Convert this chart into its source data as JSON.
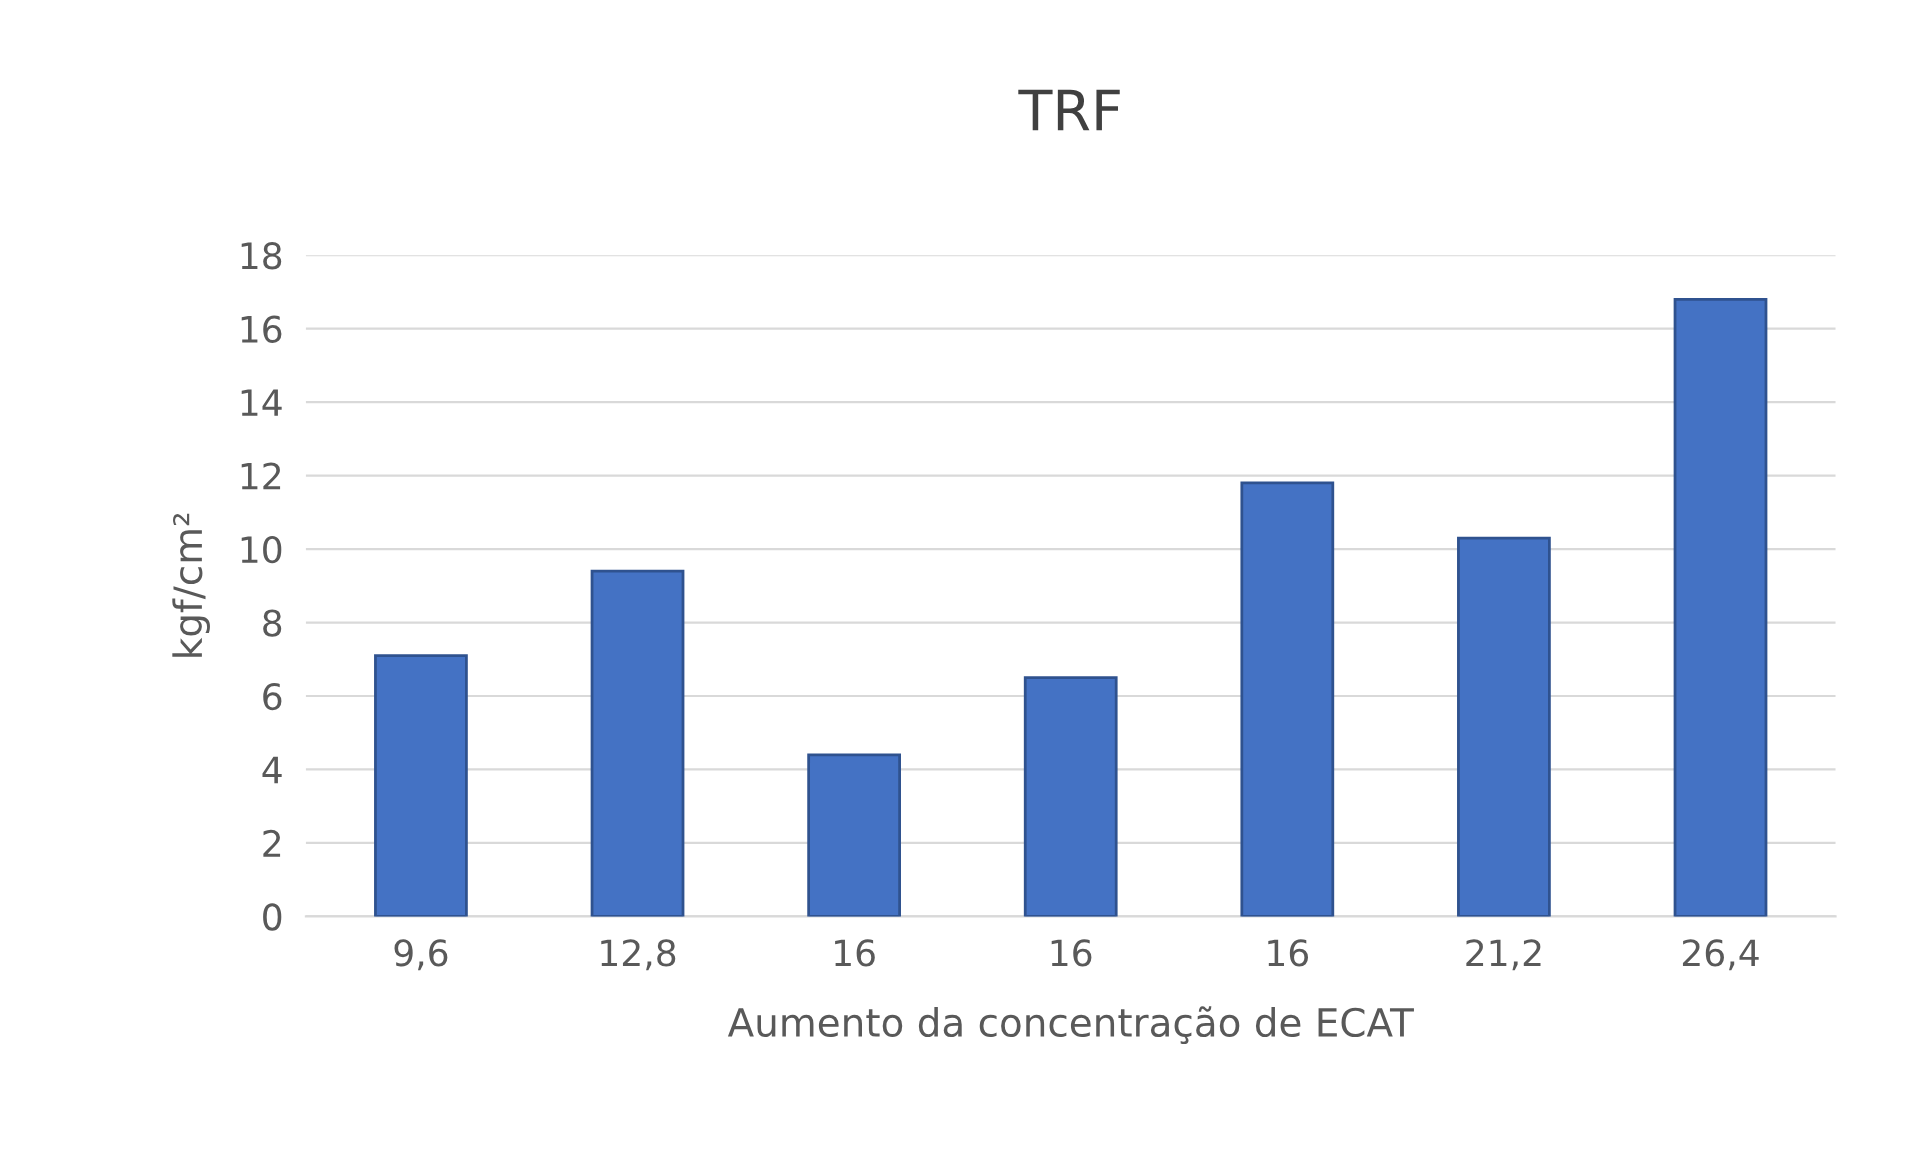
{
  "chart_data": {
    "type": "bar",
    "title": "TRF",
    "xlabel": "Aumento da concentração de ECAT",
    "ylabel": "kgf/cm²",
    "categories": [
      "9,6",
      "12,8",
      "16",
      "16",
      "16",
      "21,2",
      "26,4"
    ],
    "values": [
      7.1,
      9.4,
      4.4,
      6.5,
      11.8,
      10.3,
      16.8
    ],
    "color": "#4472c4",
    "ylim": [
      0,
      18
    ],
    "yticks": [
      0,
      2,
      4,
      6,
      8,
      10,
      12,
      14,
      16,
      18
    ],
    "grid": "y"
  }
}
